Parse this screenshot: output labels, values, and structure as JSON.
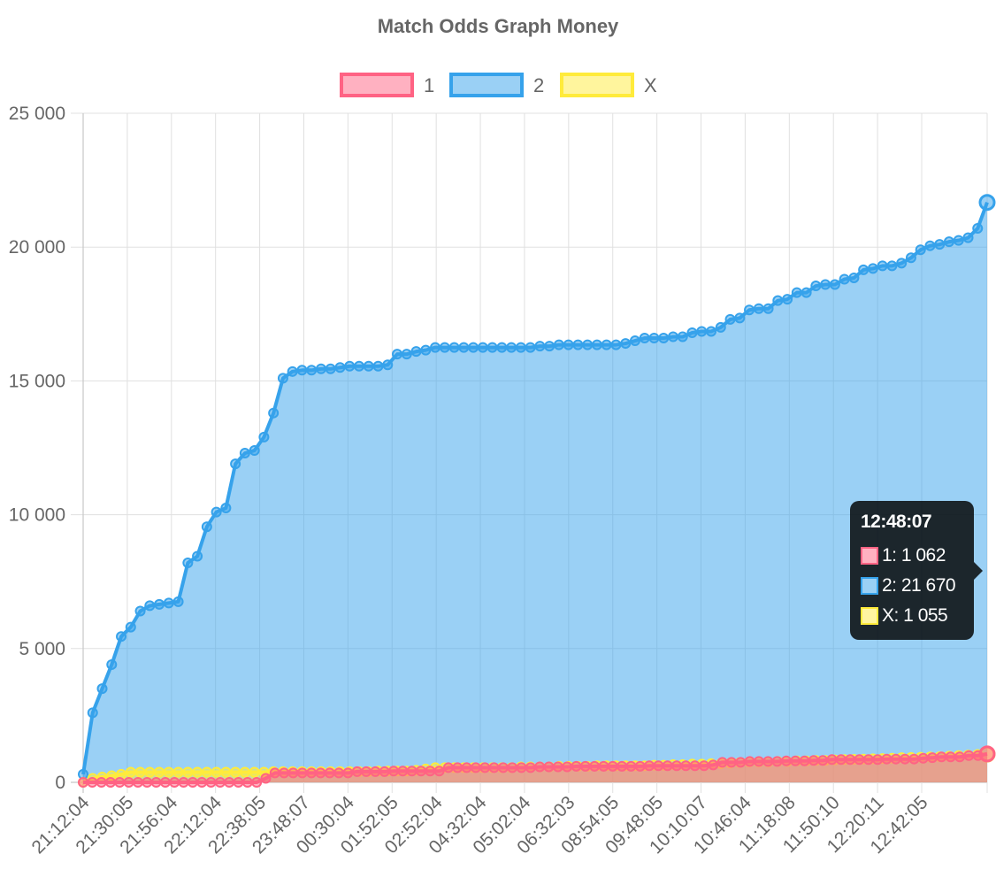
{
  "chart_data": {
    "type": "area",
    "title": "Match Odds Graph Money",
    "legend_position": "top",
    "grid": true,
    "ylim": [
      0,
      25000
    ],
    "y_ticks": [
      "0",
      "5 000",
      "10 000",
      "15 000",
      "20 000",
      "25 000"
    ],
    "x_tick_labels": [
      "21:12:04",
      "21:30:05",
      "21:56:04",
      "22:12:04",
      "22:38:05",
      "23:48:07",
      "00:30:04",
      "01:52:05",
      "02:52:04",
      "04:32:04",
      "05:02:04",
      "06:32:03",
      "08:54:05",
      "09:48:05",
      "10:10:07",
      "10:46:04",
      "11:18:08",
      "11:50:10",
      "12:20:11",
      "12:42:05"
    ],
    "series": [
      {
        "name": "1",
        "border_color": "#ff6384",
        "fill_color": "rgba(255,99,132,0.5)",
        "values": [
          0,
          0,
          0,
          0,
          0,
          0,
          0,
          0,
          0,
          0,
          0,
          0,
          0,
          0,
          0,
          0,
          0,
          0,
          0,
          0,
          150,
          350,
          350,
          350,
          350,
          350,
          350,
          350,
          350,
          350,
          400,
          400,
          400,
          400,
          420,
          420,
          420,
          420,
          420,
          420,
          550,
          550,
          550,
          550,
          550,
          550,
          550,
          550,
          550,
          550,
          580,
          580,
          580,
          580,
          600,
          600,
          600,
          600,
          600,
          600,
          600,
          600,
          620,
          620,
          620,
          620,
          620,
          620,
          620,
          650,
          750,
          750,
          750,
          780,
          780,
          780,
          780,
          800,
          800,
          800,
          820,
          820,
          850,
          850,
          850,
          850,
          850,
          850,
          870,
          870,
          870,
          870,
          900,
          920,
          950,
          950,
          950,
          1000,
          1000,
          1062
        ]
      },
      {
        "name": "2",
        "border_color": "#36a2eb",
        "fill_color": "rgba(54,162,235,0.5)",
        "values": [
          300,
          2600,
          3500,
          4400,
          5450,
          5800,
          6400,
          6600,
          6650,
          6700,
          6750,
          8200,
          8450,
          9550,
          10100,
          10250,
          11900,
          12300,
          12400,
          12900,
          13800,
          15100,
          15350,
          15400,
          15400,
          15450,
          15450,
          15500,
          15550,
          15550,
          15550,
          15550,
          15600,
          16000,
          16000,
          16100,
          16150,
          16250,
          16250,
          16250,
          16250,
          16250,
          16250,
          16250,
          16250,
          16250,
          16250,
          16250,
          16300,
          16300,
          16350,
          16350,
          16350,
          16350,
          16350,
          16350,
          16350,
          16400,
          16500,
          16600,
          16600,
          16600,
          16650,
          16650,
          16800,
          16850,
          16850,
          17000,
          17300,
          17350,
          17650,
          17700,
          17700,
          18000,
          18050,
          18300,
          18300,
          18550,
          18600,
          18600,
          18800,
          18850,
          19150,
          19200,
          19300,
          19300,
          19400,
          19600,
          19900,
          20050,
          20100,
          20200,
          20250,
          20350,
          20700,
          21670
        ]
      },
      {
        "name": "X",
        "border_color": "#ffeb3b",
        "fill_color": "rgba(255,235,59,0.5)",
        "values": [
          0,
          150,
          200,
          250,
          300,
          380,
          380,
          380,
          380,
          380,
          380,
          380,
          380,
          380,
          380,
          380,
          380,
          380,
          380,
          380,
          400,
          400,
          400,
          400,
          400,
          400,
          400,
          400,
          400,
          400,
          400,
          420,
          420,
          420,
          420,
          450,
          500,
          550,
          550,
          550,
          550,
          550,
          550,
          550,
          550,
          550,
          580,
          580,
          580,
          580,
          600,
          600,
          600,
          600,
          620,
          620,
          620,
          620,
          620,
          620,
          640,
          640,
          660,
          660,
          680,
          680,
          700,
          700,
          720,
          740,
          760,
          760,
          760,
          780,
          780,
          800,
          800,
          820,
          820,
          840,
          850,
          860,
          870,
          880,
          890,
          900,
          920,
          930,
          940,
          950,
          960,
          980,
          1000,
          1020,
          1040,
          1055
        ]
      }
    ]
  },
  "tooltip": {
    "title": "12:48:07",
    "items": [
      {
        "label": "1: 1 062",
        "border": "#ff6384",
        "fill": "#ffb1c1"
      },
      {
        "label": "2: 21 670",
        "border": "#36a2eb",
        "fill": "#9ad0f5"
      },
      {
        "label": "X: 1 055",
        "border": "#ffeb3b",
        "fill": "#fff5a0"
      }
    ]
  }
}
